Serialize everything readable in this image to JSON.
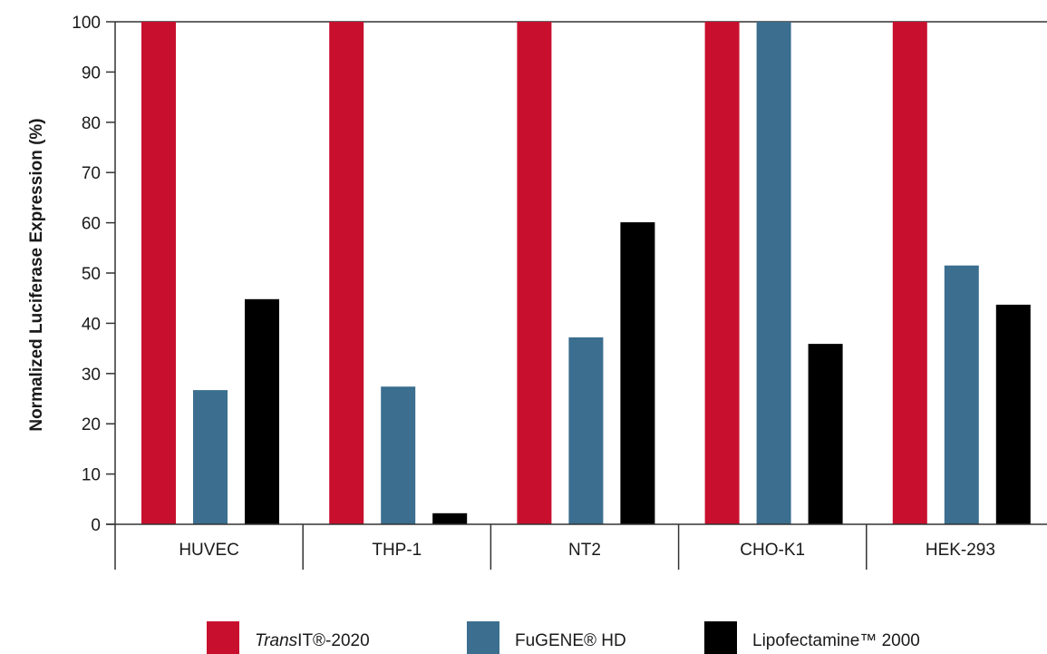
{
  "chart_data": {
    "type": "bar",
    "ylabel": "Normalized Luciferase Expression (%)",
    "ylim": [
      0,
      100
    ],
    "yticks": [
      0,
      10,
      20,
      30,
      40,
      50,
      60,
      70,
      80,
      90,
      100
    ],
    "grid": false,
    "legend_position": "bottom",
    "categories": [
      "HUVEC",
      "THP-1",
      "NT2",
      "CHO-K1",
      "HEK-293"
    ],
    "series": [
      {
        "name_italic": "Trans",
        "name_rest": "IT®-2020",
        "color": "#c8102e",
        "values": [
          100,
          100,
          100,
          100,
          100
        ]
      },
      {
        "name": "FuGENE® HD",
        "color": "#3b6e8f",
        "values": [
          26.7,
          27.4,
          37.2,
          100,
          51.5
        ]
      },
      {
        "name": "Lipofectamine™ 2000",
        "color": "#000000",
        "values": [
          44.8,
          2.2,
          60.1,
          35.9,
          43.7
        ]
      }
    ]
  }
}
